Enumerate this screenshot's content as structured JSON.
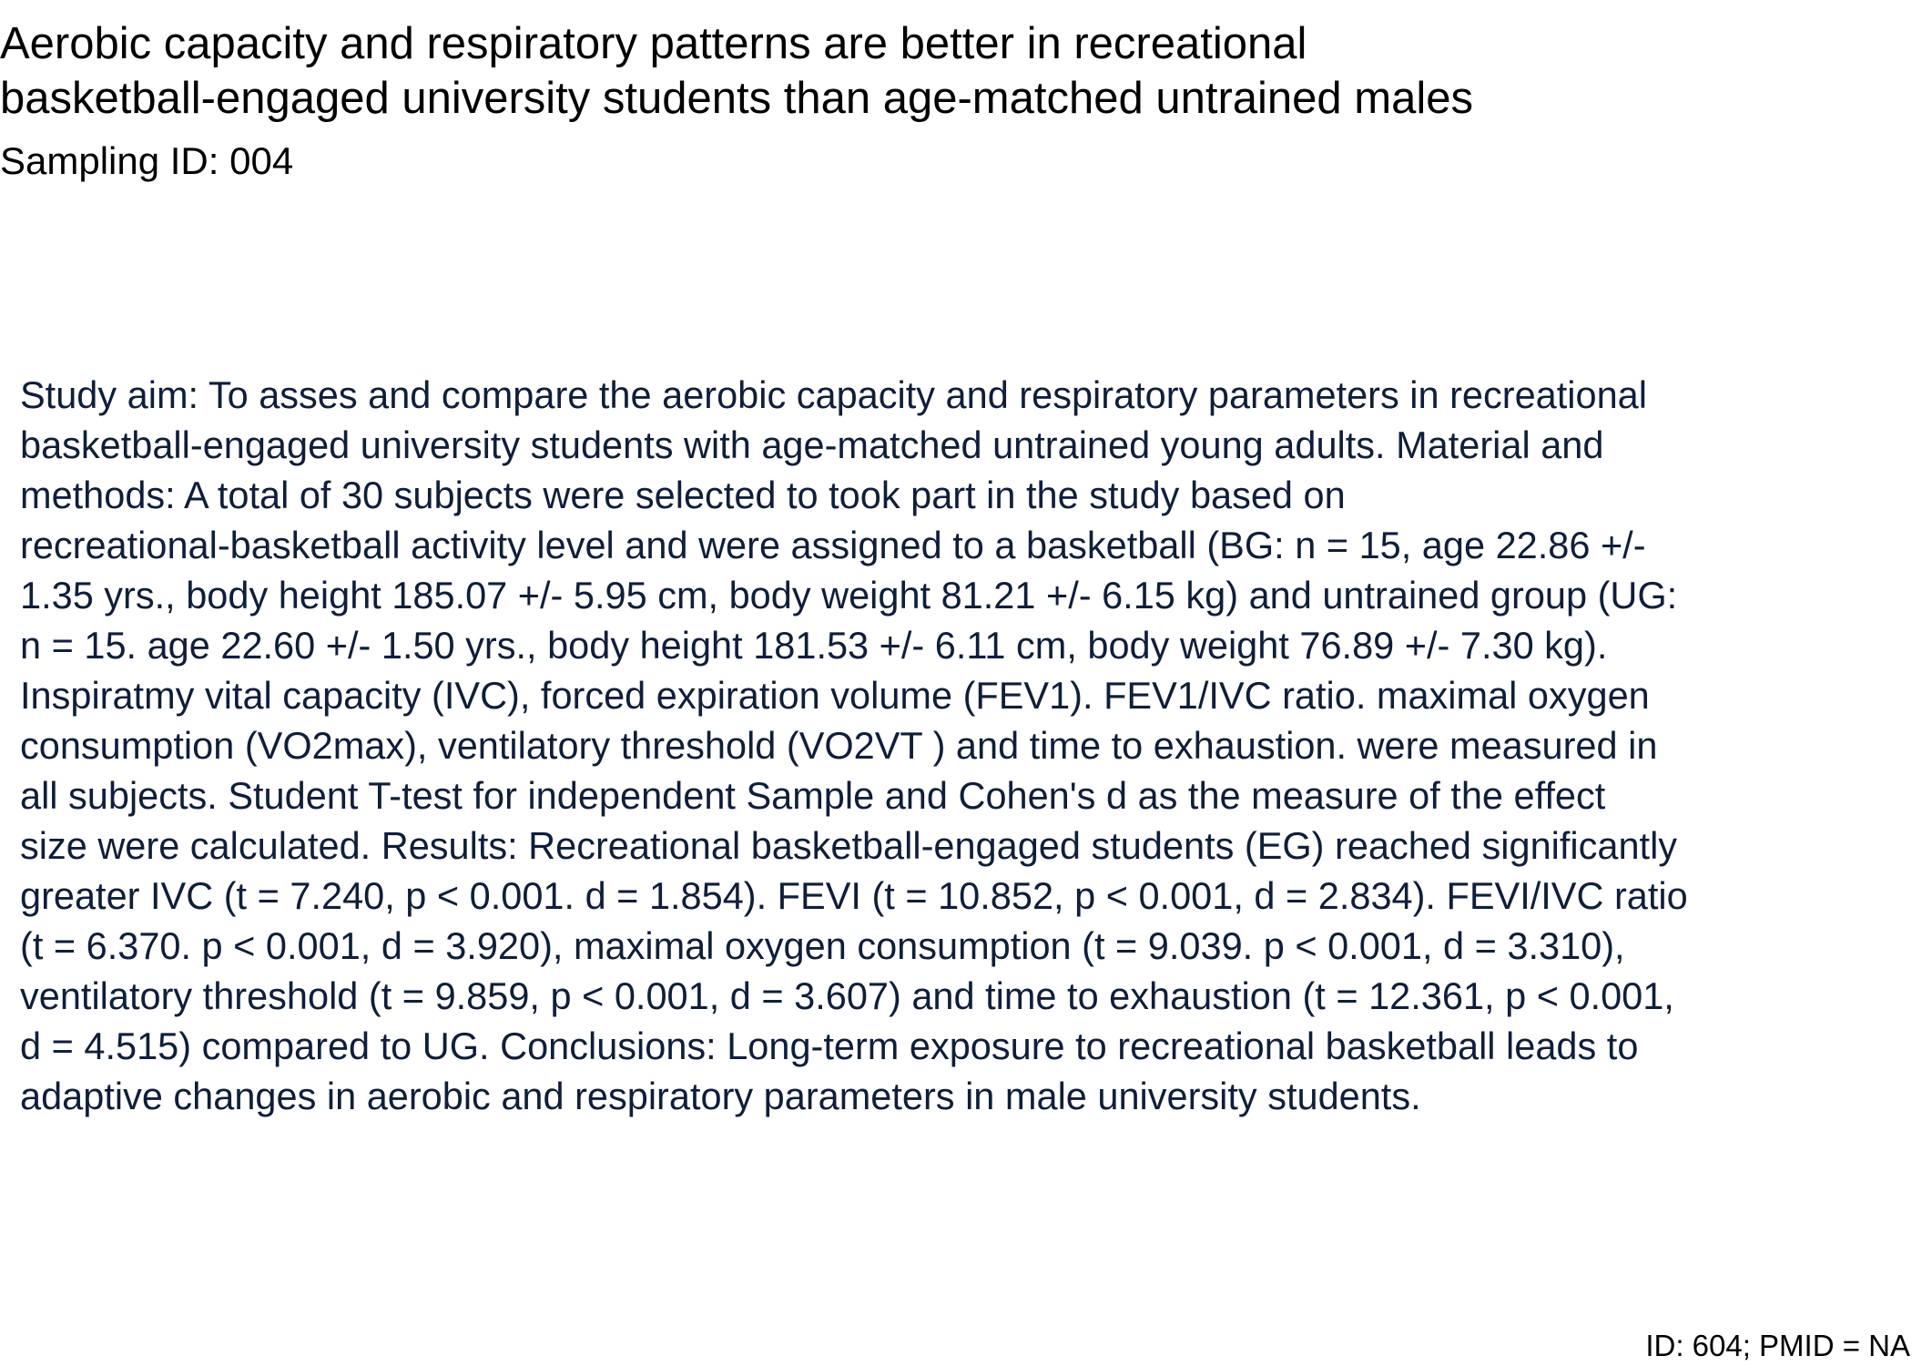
{
  "document": {
    "title_lines": [
      "Aerobic capacity and respiratory patterns are better in recreational",
      "basketball-engaged university students than age-matched untrained males"
    ],
    "sampling_id": "Sampling ID: 004",
    "abstract_lines": [
      "Study aim: To asses and compare the aerobic capacity and respiratory parameters in recreational",
      "basketball-engaged university students with age-matched untrained young adults. Material and",
      "methods: A total of 30 subjects were selected to took part in the study based on",
      "recreational-basketball activity level and were assigned to a basketball (BG: n = 15, age 22.86 +/-",
      "1.35 yrs., body height 185.07 +/- 5.95 cm, body weight 81.21 +/- 6.15 kg) and untrained group (UG:",
      "n = 15. age 22.60 +/- 1.50 yrs., body height 181.53 +/- 6.11 cm, body weight 76.89 +/- 7.30 kg).",
      "Inspiratmy vital capacity (IVC), forced expiration volume (FEV1). FEV1/IVC ratio. maximal oxygen",
      "consumption (VO2max), ventilatory threshold (VO2VT ) and time to exhaustion. were measured in",
      "all subjects. Student T-test for independent Sample and Cohen's d as the measure of the effect",
      "size were calculated. Results: Recreational basketball-engaged students (EG) reached significantly",
      "greater IVC (t = 7.240, p < 0.001. d = 1.854). FEVI (t = 10.852, p < 0.001, d = 2.834). FEVI/IVC ratio",
      "(t = 6.370. p < 0.001, d = 3.920), maximal oxygen consumption (t = 9.039. p < 0.001, d = 3.310),",
      "ventilatory threshold (t = 9.859, p < 0.001, d = 3.607) and time to exhaustion (t = 12.361, p < 0.001,",
      "d = 4.515) compared to UG. Conclusions: Long-term exposure to recreational basketball leads to",
      "adaptive changes in aerobic and respiratory parameters in male university students."
    ],
    "footer_id": "ID: 604; PMID = NA"
  },
  "colors": {
    "title_text": "#000000",
    "abstract_text": "#0f1e3a",
    "background": "#ffffff"
  }
}
